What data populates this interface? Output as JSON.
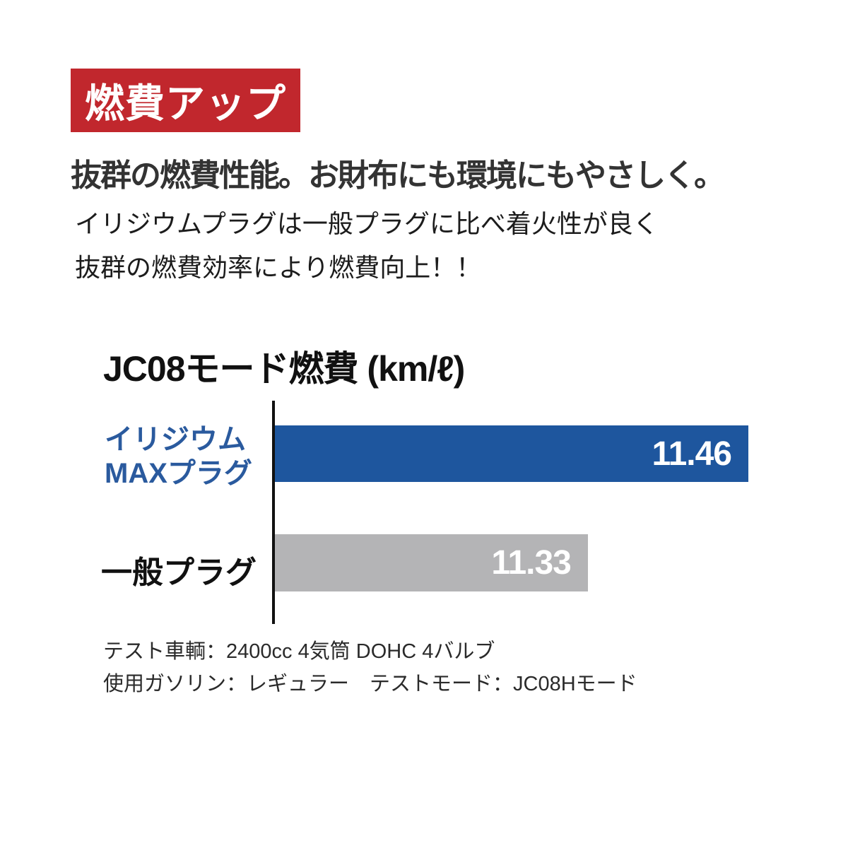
{
  "badge": {
    "label": "燃費アップ",
    "bg_color": "#c1272d",
    "text_color": "#ffffff"
  },
  "headline": "抜群の燃費性能。お財布にも環境にもやさしく。",
  "intro": {
    "line1": "イリジウムプラグは一般プラグに比べ着火性が良く",
    "line2": "抜群の燃費効率により燃費向上！！"
  },
  "chart_data": {
    "type": "bar",
    "orientation": "horizontal",
    "title": "JC08モード燃費 (km/ℓ)",
    "unit": "km/ℓ",
    "categories": [
      "イリジウムMAXプラグ",
      "一般プラグ"
    ],
    "series": [
      {
        "name": "JC08モード燃費",
        "values": [
          11.46,
          11.33
        ]
      }
    ],
    "value_labels": [
      "11.46",
      "11.33"
    ],
    "bar_colors": [
      "#1e569e",
      "#b4b4b6"
    ],
    "bar_width_pct": [
      100,
      66.1
    ],
    "layout": {
      "value_labels_inside_bars": true,
      "gridlines": false,
      "axis_baseline_estimate": 11.08,
      "category_label_colors": [
        "#2a5a9e",
        "#111111"
      ]
    }
  },
  "chart_labels": {
    "row1_line1": "イリジウム",
    "row1_line2": "MAXプラグ",
    "row2": "一般プラグ"
  },
  "footnotes": {
    "line1": "テスト車輌：2400cc 4気筒 DOHC 4バルブ",
    "line2": "使用ガソリン：レギュラー　テストモード：JC08Hモード"
  }
}
